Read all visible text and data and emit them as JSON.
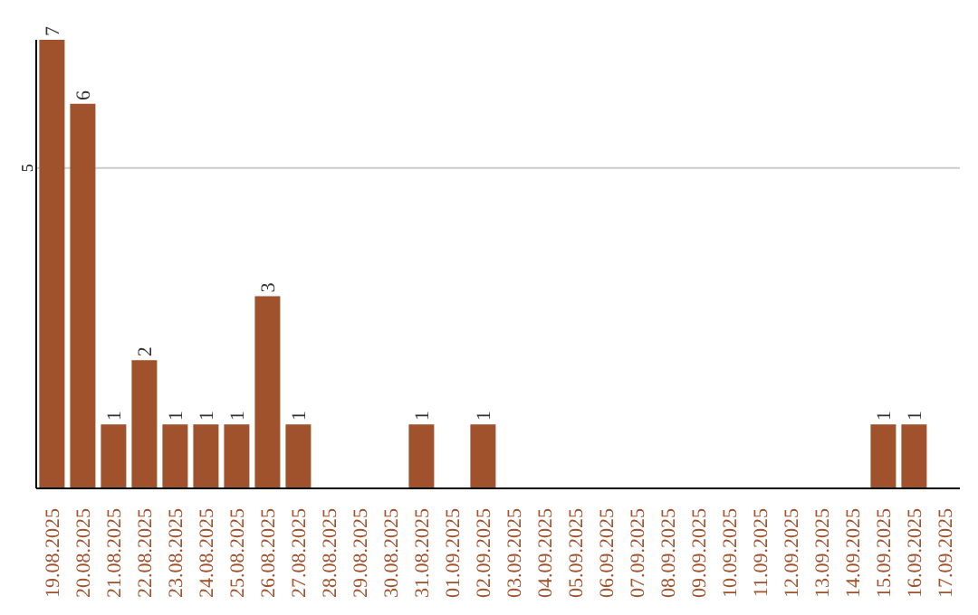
{
  "chart_data": {
    "type": "bar",
    "categories": [
      "19.08.2025",
      "20.08.2025",
      "21.08.2025",
      "22.08.2025",
      "23.08.2025",
      "24.08.2025",
      "25.08.2025",
      "26.08.2025",
      "27.08.2025",
      "28.08.2025",
      "29.08.2025",
      "30.08.2025",
      "31.08.2025",
      "01.09.2025",
      "02.09.2025",
      "03.09.2025",
      "04.09.2025",
      "05.09.2025",
      "06.09.2025",
      "07.09.2025",
      "08.09.2025",
      "09.09.2025",
      "10.09.2025",
      "11.09.2025",
      "12.09.2025",
      "13.09.2025",
      "14.09.2025",
      "15.09.2025",
      "16.09.2025",
      "17.09.2025"
    ],
    "values": [
      7,
      6,
      1,
      2,
      1,
      1,
      1,
      3,
      1,
      0,
      0,
      0,
      1,
      0,
      1,
      0,
      0,
      0,
      0,
      0,
      0,
      0,
      0,
      0,
      0,
      0,
      0,
      1,
      1,
      0
    ],
    "value_labels": [
      "7",
      "6",
      "1",
      "2",
      "1",
      "1",
      "1",
      "3",
      "1",
      null,
      null,
      null,
      "1",
      null,
      "1",
      null,
      null,
      null,
      null,
      null,
      null,
      null,
      null,
      null,
      null,
      null,
      null,
      "1",
      "1",
      null
    ],
    "color": "#a0522d",
    "ylim": [
      0,
      7
    ],
    "yticks": [
      5
    ],
    "grid": "y"
  }
}
